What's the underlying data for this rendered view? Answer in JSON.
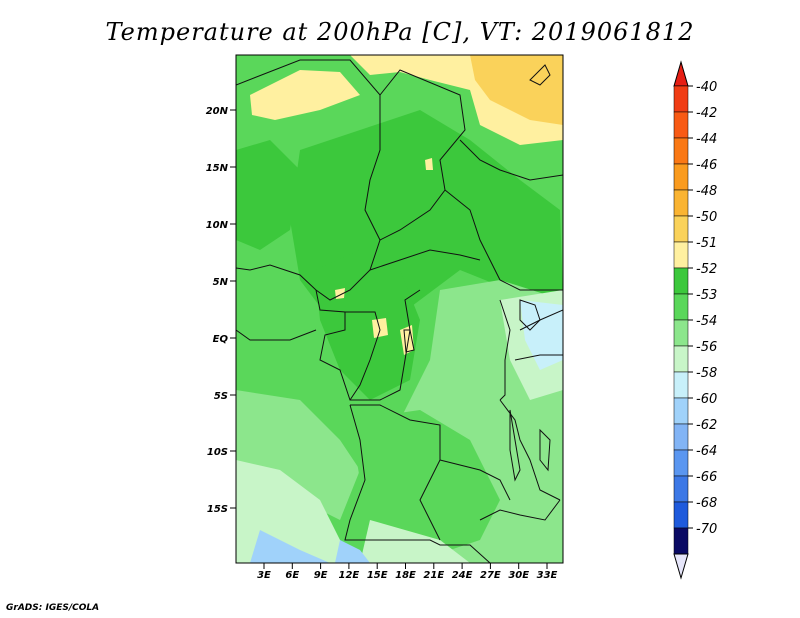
{
  "title": "Temperature at 200hPa [C], VT: 2019061812",
  "footer": "GrADS: IGES/COLA",
  "map": {
    "lat_labels": [
      "20N",
      "15N",
      "10N",
      "5N",
      "EQ",
      "5S",
      "10S",
      "15S"
    ],
    "lon_labels": [
      "3E",
      "6E",
      "9E",
      "12E",
      "15E",
      "18E",
      "21E",
      "24E",
      "27E",
      "30E",
      "33E"
    ]
  },
  "colorbar": {
    "levels": [
      {
        "label": "-40",
        "color": "#f03c14"
      },
      {
        "label": "-42",
        "color": "#f85a14"
      },
      {
        "label": "-44",
        "color": "#fa7814"
      },
      {
        "label": "-46",
        "color": "#fa9b1e"
      },
      {
        "label": "-48",
        "color": "#fab432"
      },
      {
        "label": "-50",
        "color": "#fad25a"
      },
      {
        "label": "-51",
        "color": "#fff0a0"
      },
      {
        "label": "-52",
        "color": "#3cc83c"
      },
      {
        "label": "-53",
        "color": "#5ad75a"
      },
      {
        "label": "-54",
        "color": "#8ce68c"
      },
      {
        "label": "-56",
        "color": "#c8f5c8"
      },
      {
        "label": "-58",
        "color": "#c8f0fa"
      },
      {
        "label": "-60",
        "color": "#a0d2fa"
      },
      {
        "label": "-62",
        "color": "#82b4f5"
      },
      {
        "label": "-64",
        "color": "#5a96f0"
      },
      {
        "label": "-66",
        "color": "#3c78e6"
      },
      {
        "label": "-68",
        "color": "#1e5adc"
      },
      {
        "label": "-70",
        "color": "#0a3cbe"
      }
    ],
    "top_color": "#e61e14",
    "bottom_fill": "#0a0a64",
    "bottom_triangle": "#e6e6fa"
  }
}
